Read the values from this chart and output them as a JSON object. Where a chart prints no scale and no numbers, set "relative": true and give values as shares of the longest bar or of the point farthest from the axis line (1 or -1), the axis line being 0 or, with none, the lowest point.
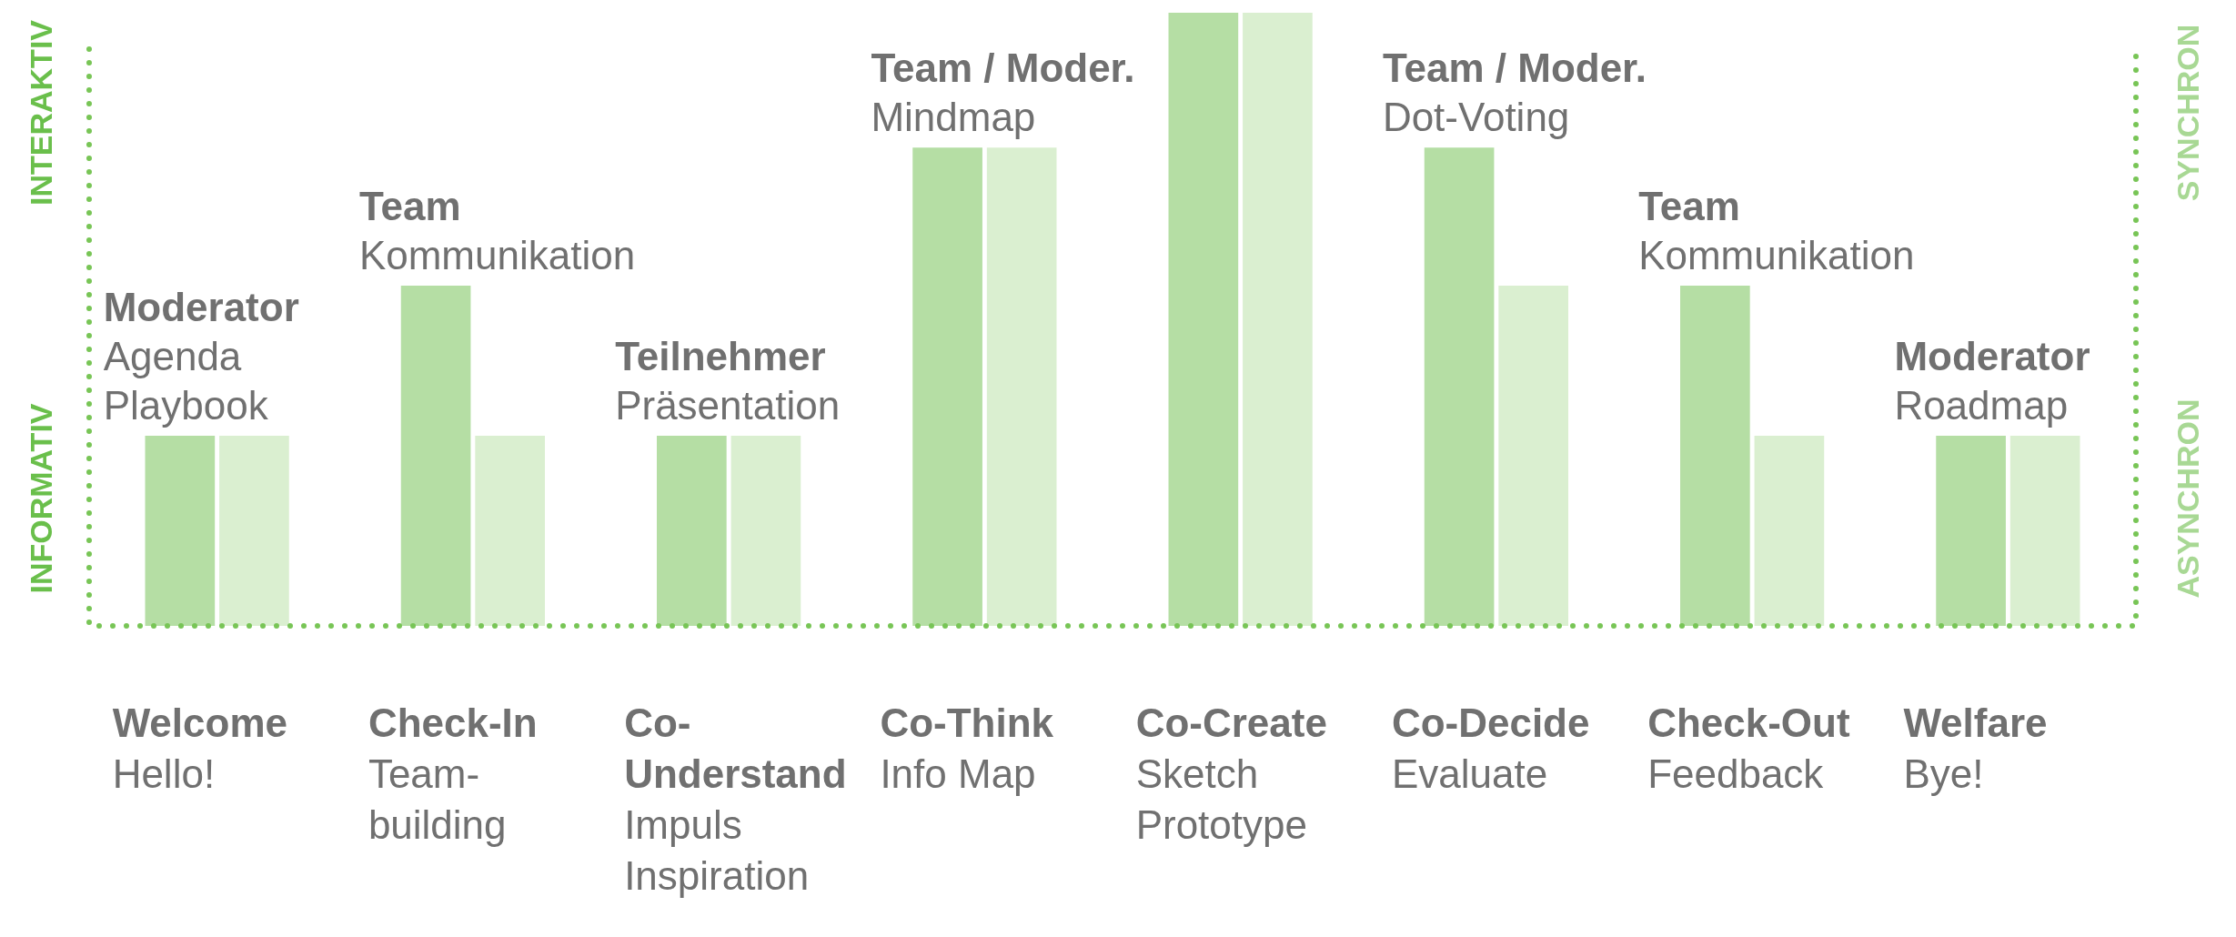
{
  "chart_data": {
    "type": "bar",
    "relative": true,
    "categories": [
      "Welcome\nHello!",
      "Check-In\nTeam-building",
      "Co-Understand\nImpuls Inspiration",
      "Co-Think\nInfo Map",
      "Co-Create\nSketch Prototype",
      "Co-Decide\nEvaluate",
      "Check-Out\nFeedback",
      "Welfare\nBye!"
    ],
    "series": [
      {
        "color": "#b5dea4",
        "values": [
          0.31,
          0.555,
          0.31,
          0.78,
          1,
          0.78,
          0.555,
          0.31
        ]
      },
      {
        "color": "#daefd0",
        "values": [
          0.31,
          0.31,
          0.31,
          0.78,
          1,
          0.555,
          0.31,
          0.31
        ]
      }
    ],
    "annotations": [
      "INTERAKTIV",
      "INFORMATIV",
      "SYNCHRON",
      "ASYNCHRON",
      {
        "text": "Moderator\nAgenda Playbook",
        "x": "Welcome\nHello!",
        "y": 0.31
      },
      {
        "text": "Team\nKommunikation",
        "x": "Check-In\nTeam-building",
        "y": 0.555
      },
      {
        "text": "Teilnehmer\nPräsentation",
        "x": "Co-Understand\nImpuls Inspiration",
        "y": 0.31
      },
      {
        "text": "Team / Moder.\nMindmap",
        "x": "Co-Think\nInfo Map",
        "y": 0.78
      },
      {
        "text": "Team / Moder.\nDot-Voting",
        "x": "Co-Decide\nEvaluate",
        "y": 0.78
      },
      {
        "text": "Team\nKommunikation",
        "x": "Check-Out\nFeedback",
        "y": 0.555
      },
      {
        "text": "Moderator\nRoadmap",
        "x": "Welfare\nBye!",
        "y": 0.31
      }
    ]
  }
}
